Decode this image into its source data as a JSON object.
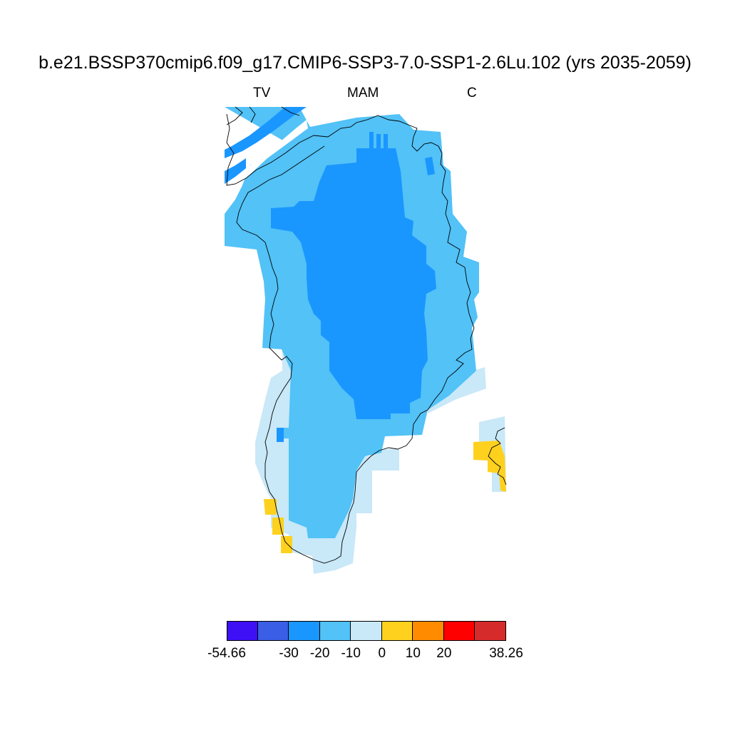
{
  "title": "b.e21.BSSP370cmip6.f09_g17.CMIP6-SSP3-7.0-SSP1-2.6Lu.102 (yrs 2035-2059)",
  "subtitle": {
    "left": "TV",
    "center": "MAM",
    "right": "C"
  },
  "colorbar": {
    "colors": [
      "#3e10f5",
      "#3a5ee6",
      "#1a96ff",
      "#52c2f7",
      "#c9e8f8",
      "#ffd11f",
      "#ff8c00",
      "#ff0000",
      "#d62b2b"
    ],
    "labels": [
      "-54.66",
      "-30",
      "-20",
      "-10",
      "0",
      "10",
      "20",
      "38.26"
    ]
  },
  "map_colors": {
    "deep_negative": "#1a96ff",
    "mid_negative": "#52c2f7",
    "light_negative": "#c9e8f8",
    "positive": "#ffd11f",
    "coastline": "#000000"
  }
}
